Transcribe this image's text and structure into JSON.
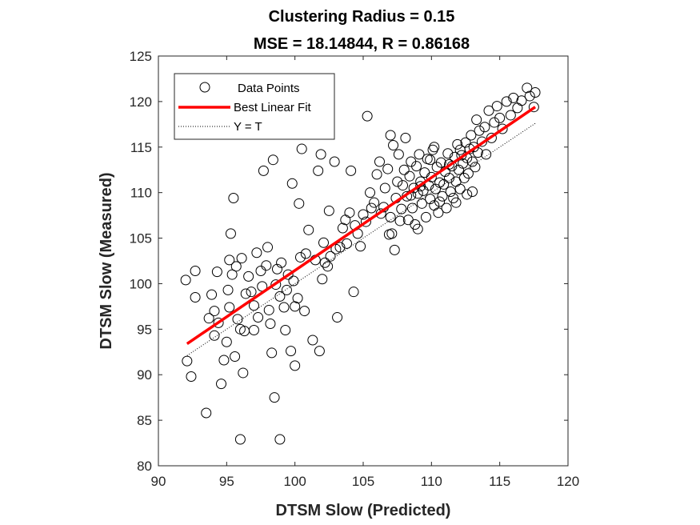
{
  "chart_data": {
    "type": "scatter",
    "title": "Clustering Radius = 0.15",
    "subtitle": "MSE = 18.14844, R = 0.86168",
    "xlabel": "DTSM Slow (Predicted)",
    "ylabel": "DTSM Slow (Measured)",
    "xlim": [
      90,
      120
    ],
    "ylim": [
      80,
      125
    ],
    "xticks": [
      "90",
      "95",
      "100",
      "105",
      "110",
      "115",
      "120"
    ],
    "yticks": [
      "80",
      "85",
      "90",
      "95",
      "100",
      "105",
      "110",
      "115",
      "120",
      "125"
    ],
    "grid": false,
    "legend_position": "top-left",
    "legend": {
      "data_points": "Data Points",
      "best_fit": "Best Linear Fit",
      "identity": "Y = T"
    },
    "colors": {
      "points": "#000000",
      "fit": "#ff0000",
      "identity": "#000000"
    },
    "best_fit_line": {
      "x": [
        92.1,
        117.6
      ],
      "y": [
        93.4,
        119.4
      ]
    },
    "identity_line": {
      "x": [
        92.1,
        117.6
      ],
      "y": [
        92.1,
        117.6
      ]
    },
    "series": [
      {
        "name": "Data Points",
        "points": [
          [
            92.0,
            100.4
          ],
          [
            92.7,
            101.4
          ],
          [
            92.1,
            91.5
          ],
          [
            92.4,
            89.8
          ],
          [
            92.7,
            98.5
          ],
          [
            93.5,
            85.8
          ],
          [
            93.7,
            96.2
          ],
          [
            93.9,
            98.8
          ],
          [
            94.1,
            97.0
          ],
          [
            94.3,
            101.3
          ],
          [
            94.1,
            94.3
          ],
          [
            94.4,
            95.7
          ],
          [
            94.6,
            89.0
          ],
          [
            94.8,
            91.6
          ],
          [
            95.0,
            93.6
          ],
          [
            95.1,
            99.3
          ],
          [
            95.2,
            97.4
          ],
          [
            95.3,
            105.5
          ],
          [
            95.2,
            102.6
          ],
          [
            95.4,
            101.0
          ],
          [
            95.5,
            109.4
          ],
          [
            95.6,
            92.0
          ],
          [
            95.7,
            101.9
          ],
          [
            95.8,
            96.1
          ],
          [
            96.0,
            82.9
          ],
          [
            96.0,
            95.0
          ],
          [
            96.2,
            90.2
          ],
          [
            96.3,
            94.8
          ],
          [
            96.4,
            98.9
          ],
          [
            96.1,
            102.8
          ],
          [
            96.6,
            100.8
          ],
          [
            96.8,
            99.1
          ],
          [
            97.0,
            94.9
          ],
          [
            97.0,
            97.6
          ],
          [
            97.2,
            103.4
          ],
          [
            97.3,
            96.3
          ],
          [
            97.5,
            101.4
          ],
          [
            97.6,
            99.7
          ],
          [
            97.7,
            112.4
          ],
          [
            97.9,
            102.0
          ],
          [
            98.0,
            104.0
          ],
          [
            98.1,
            97.1
          ],
          [
            98.2,
            95.6
          ],
          [
            98.3,
            92.4
          ],
          [
            98.4,
            113.6
          ],
          [
            98.5,
            87.5
          ],
          [
            98.6,
            99.9
          ],
          [
            98.7,
            101.6
          ],
          [
            98.9,
            82.9
          ],
          [
            98.9,
            98.6
          ],
          [
            99.0,
            102.3
          ],
          [
            99.2,
            97.4
          ],
          [
            99.3,
            94.9
          ],
          [
            99.4,
            99.3
          ],
          [
            99.5,
            101.0
          ],
          [
            99.7,
            92.6
          ],
          [
            99.8,
            111.0
          ],
          [
            99.9,
            100.3
          ],
          [
            100.0,
            97.5
          ],
          [
            100.0,
            91.0
          ],
          [
            100.2,
            98.4
          ],
          [
            100.3,
            108.8
          ],
          [
            100.4,
            102.9
          ],
          [
            100.5,
            114.8
          ],
          [
            100.7,
            97.0
          ],
          [
            100.8,
            103.3
          ],
          [
            101.0,
            105.9
          ],
          [
            101.3,
            93.8
          ],
          [
            101.5,
            102.6
          ],
          [
            101.7,
            112.4
          ],
          [
            101.8,
            92.6
          ],
          [
            101.9,
            114.2
          ],
          [
            102.0,
            100.5
          ],
          [
            102.1,
            104.5
          ],
          [
            102.2,
            102.3
          ],
          [
            102.4,
            101.9
          ],
          [
            102.5,
            108.0
          ],
          [
            102.6,
            103.0
          ],
          [
            102.9,
            113.4
          ],
          [
            103.0,
            103.8
          ],
          [
            103.1,
            96.3
          ],
          [
            103.3,
            104.0
          ],
          [
            103.5,
            106.1
          ],
          [
            103.7,
            107.0
          ],
          [
            103.8,
            104.4
          ],
          [
            104.0,
            107.8
          ],
          [
            104.1,
            112.4
          ],
          [
            104.3,
            99.1
          ],
          [
            104.4,
            106.4
          ],
          [
            104.6,
            105.5
          ],
          [
            104.8,
            104.1
          ],
          [
            105.0,
            107.6
          ],
          [
            105.2,
            106.8
          ],
          [
            105.3,
            118.4
          ],
          [
            105.5,
            110.0
          ],
          [
            105.6,
            108.3
          ],
          [
            105.8,
            108.9
          ],
          [
            106.0,
            112.0
          ],
          [
            106.2,
            113.4
          ],
          [
            106.3,
            107.7
          ],
          [
            106.5,
            108.4
          ],
          [
            106.6,
            110.5
          ],
          [
            106.8,
            112.6
          ],
          [
            107.0,
            107.3
          ],
          [
            107.0,
            116.3
          ],
          [
            107.1,
            105.5
          ],
          [
            107.2,
            115.2
          ],
          [
            107.3,
            103.7
          ],
          [
            107.4,
            109.4
          ],
          [
            107.5,
            111.2
          ],
          [
            107.6,
            114.2
          ],
          [
            107.7,
            106.9
          ],
          [
            107.8,
            108.2
          ],
          [
            107.9,
            110.8
          ],
          [
            108.0,
            112.5
          ],
          [
            108.1,
            116.0
          ],
          [
            108.2,
            109.6
          ],
          [
            108.3,
            107.0
          ],
          [
            108.4,
            111.8
          ],
          [
            108.5,
            113.4
          ],
          [
            108.6,
            108.3
          ],
          [
            108.7,
            110.5
          ],
          [
            108.8,
            106.5
          ],
          [
            108.9,
            112.9
          ],
          [
            109.0,
            109.9
          ],
          [
            109.1,
            114.2
          ],
          [
            109.2,
            111.2
          ],
          [
            109.3,
            108.8
          ],
          [
            109.4,
            110.2
          ],
          [
            109.5,
            112.2
          ],
          [
            109.6,
            107.3
          ],
          [
            109.7,
            113.7
          ],
          [
            109.8,
            110.8
          ],
          [
            109.9,
            109.3
          ],
          [
            110.0,
            111.7
          ],
          [
            110.1,
            114.7
          ],
          [
            110.2,
            108.6
          ],
          [
            110.3,
            110.4
          ],
          [
            110.4,
            112.8
          ],
          [
            110.5,
            107.8
          ],
          [
            110.6,
            111.1
          ],
          [
            110.7,
            113.3
          ],
          [
            110.8,
            109.6
          ],
          [
            110.9,
            110.9
          ],
          [
            111.0,
            112.3
          ],
          [
            111.1,
            108.3
          ],
          [
            111.2,
            114.3
          ],
          [
            111.3,
            111.6
          ],
          [
            111.4,
            110.1
          ],
          [
            111.5,
            112.9
          ],
          [
            111.6,
            109.4
          ],
          [
            111.7,
            113.9
          ],
          [
            111.8,
            111.2
          ],
          [
            111.9,
            115.3
          ],
          [
            112.0,
            112.5
          ],
          [
            112.1,
            110.4
          ],
          [
            112.2,
            114.1
          ],
          [
            112.3,
            113.2
          ],
          [
            112.4,
            111.6
          ],
          [
            112.5,
            115.5
          ],
          [
            112.6,
            113.8
          ],
          [
            112.7,
            112.1
          ],
          [
            112.8,
            114.8
          ],
          [
            112.9,
            116.3
          ],
          [
            113.0,
            113.4
          ],
          [
            113.1,
            115.0
          ],
          [
            113.2,
            112.8
          ],
          [
            113.3,
            118.0
          ],
          [
            113.4,
            114.4
          ],
          [
            113.5,
            116.8
          ],
          [
            113.7,
            115.6
          ],
          [
            113.9,
            117.2
          ],
          [
            114.0,
            114.2
          ],
          [
            114.2,
            119.0
          ],
          [
            114.4,
            116.0
          ],
          [
            114.6,
            117.7
          ],
          [
            114.8,
            119.5
          ],
          [
            115.0,
            118.2
          ],
          [
            115.2,
            117.0
          ],
          [
            115.5,
            120.0
          ],
          [
            115.8,
            118.5
          ],
          [
            116.0,
            120.4
          ],
          [
            116.3,
            119.3
          ],
          [
            116.6,
            120.1
          ],
          [
            117.0,
            121.5
          ],
          [
            117.2,
            120.6
          ],
          [
            117.5,
            119.4
          ],
          [
            117.6,
            121.0
          ],
          [
            113.0,
            110.1
          ],
          [
            112.1,
            114.7
          ],
          [
            111.3,
            113.1
          ],
          [
            110.6,
            109.0
          ],
          [
            109.9,
            113.6
          ],
          [
            109.2,
            110.7
          ],
          [
            108.5,
            109.7
          ],
          [
            111.8,
            108.9
          ],
          [
            112.6,
            109.8
          ],
          [
            110.2,
            115.0
          ],
          [
            109.0,
            106.0
          ],
          [
            106.9,
            105.4
          ]
        ]
      }
    ]
  }
}
